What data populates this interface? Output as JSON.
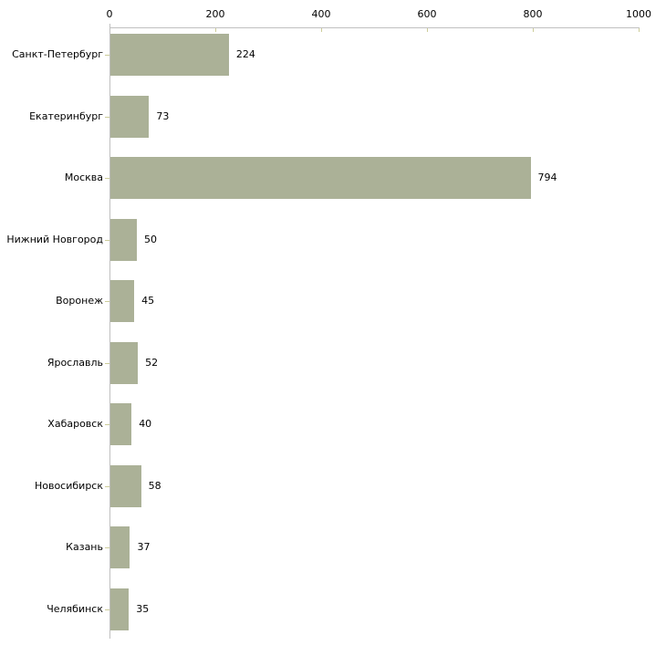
{
  "chart_data": {
    "type": "bar",
    "orientation": "horizontal",
    "title": "",
    "xlabel": "",
    "ylabel": "",
    "categories": [
      "Санкт-Петербург",
      "Екатеринбург",
      "Москва",
      "Нижний Новгород",
      "Воронеж",
      "Ярославль",
      "Хабаровск",
      "Новосибирск",
      "Казань",
      "Челябинск"
    ],
    "values": [
      224,
      73,
      794,
      50,
      45,
      52,
      40,
      58,
      37,
      35
    ],
    "x_ticks": [
      0,
      200,
      400,
      600,
      800,
      1000
    ],
    "xlim": [
      0,
      1000
    ],
    "axis_position": "top",
    "grid": false,
    "legend": false,
    "data_labels": true,
    "colors": {
      "bar": "#abb197",
      "axis_line": "#c0c0c0",
      "tick_mark": "#cccc99",
      "text": "#000000",
      "background": "#ffffff"
    }
  }
}
